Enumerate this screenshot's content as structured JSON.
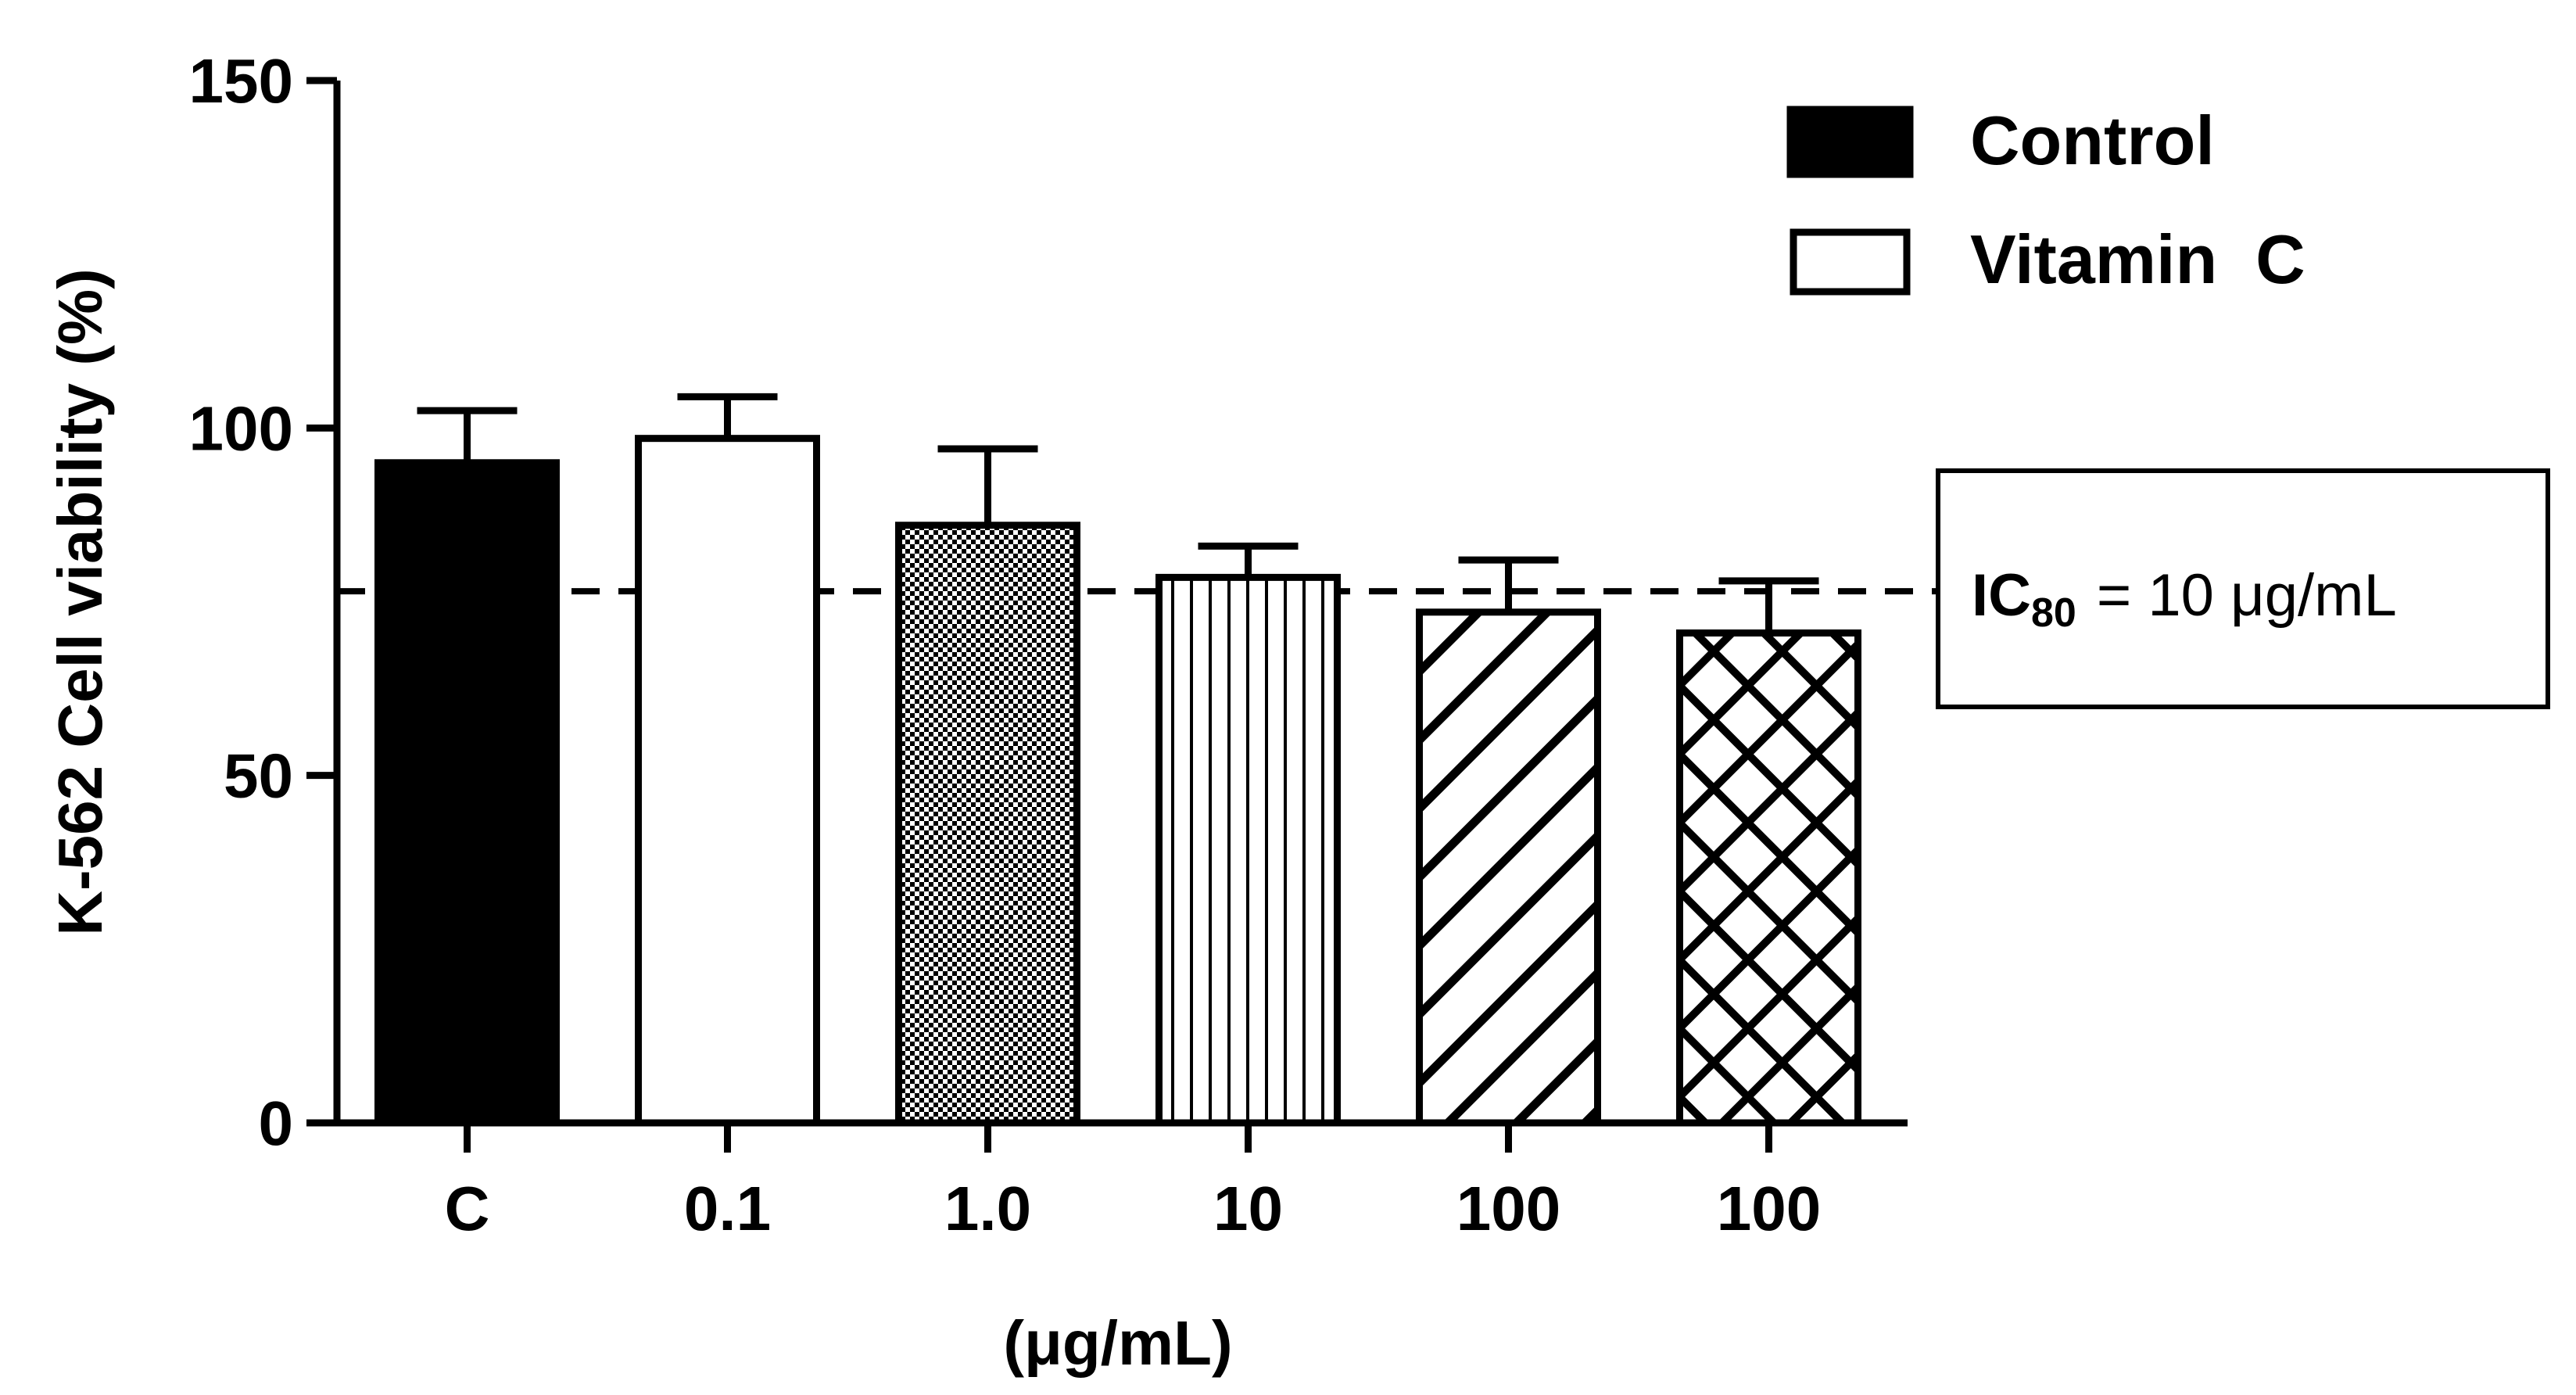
{
  "chart_data": {
    "type": "bar",
    "title": "",
    "xlabel": "(μg/mL)",
    "ylabel": "K-562 Cell viability (%)",
    "ylim": [
      0,
      150
    ],
    "yticks": [
      0,
      50,
      100,
      150
    ],
    "categories": [
      "C",
      "0.1",
      "1.0",
      "10",
      "100",
      "100"
    ],
    "values": [
      95,
      98.5,
      86,
      78.5,
      73.5,
      70.5
    ],
    "errors": [
      7.5,
      6,
      11,
      4.5,
      7.5,
      7.5
    ],
    "patterns": [
      "solid",
      "white",
      "checker",
      "vertical",
      "diagonal",
      "crosshatch"
    ],
    "legend": {
      "position": "top-right",
      "entries": [
        {
          "label": "Control",
          "style": "solid"
        },
        {
          "label": "Vitamin  C",
          "style": "white"
        }
      ]
    },
    "reference_line": {
      "value": 76.5,
      "style": "dashed"
    },
    "annotation": {
      "prefix": "IC",
      "subscript": "80",
      "suffix": "= 10 μg/mL"
    },
    "colors": {
      "bar_stroke": "#000000",
      "fill_dark": "#000000",
      "fill_light": "#ffffff"
    }
  }
}
